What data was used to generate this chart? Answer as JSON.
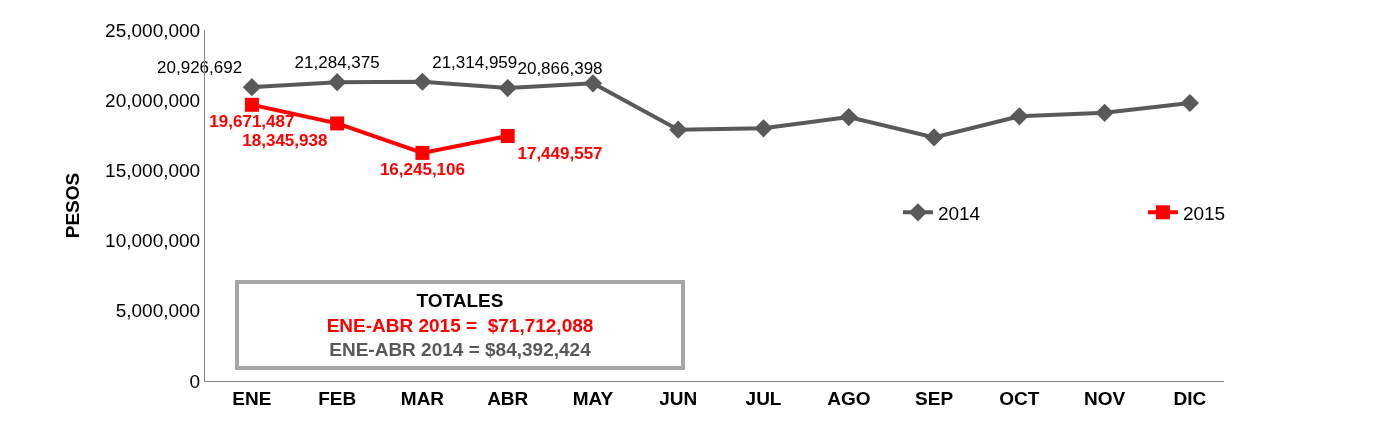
{
  "chart_data": {
    "type": "line",
    "ylabel": "PESOS",
    "categories": [
      "ENE",
      "FEB",
      "MAR",
      "ABR",
      "MAY",
      "JUN",
      "JUL",
      "AGO",
      "SEP",
      "OCT",
      "NOV",
      "DIC"
    ],
    "series": [
      {
        "name": "2014",
        "color": "#595959",
        "marker": "diamond",
        "values": [
          20926692,
          21284375,
          21314959,
          20866398,
          21200000,
          17900000,
          18000000,
          18800000,
          17350000,
          18850000,
          19100000,
          19800000
        ],
        "value_labels": [
          "20,926,692",
          "21,284,375",
          "21,314,959",
          "20,866,398",
          null,
          null,
          null,
          null,
          null,
          null,
          null,
          null
        ]
      },
      {
        "name": "2015",
        "color": "#ff0000",
        "marker": "square",
        "values": [
          19671487,
          18345938,
          16245106,
          17449557,
          null,
          null,
          null,
          null,
          null,
          null,
          null,
          null
        ],
        "value_labels": [
          "19,671,487",
          "18,345,938",
          "16,245,106",
          "17,449,557",
          null,
          null,
          null,
          null,
          null,
          null,
          null,
          null
        ]
      }
    ],
    "ylim": [
      0,
      25000000
    ],
    "yticks": [
      {
        "value": 0,
        "label": "0"
      },
      {
        "value": 5000000,
        "label": "5,000,000"
      },
      {
        "value": 10000000,
        "label": "10,000,000"
      },
      {
        "value": 15000000,
        "label": "15,000,000"
      },
      {
        "value": 20000000,
        "label": "20,000,000"
      },
      {
        "value": 25000000,
        "label": "25,000,000"
      }
    ],
    "grid": false,
    "legend": "right",
    "line_style": "solid",
    "annotations": [
      "TOTALES",
      "ENE-ABR 2015 =  $71,712,088",
      "ENE-ABR 2014 = $84,392,424"
    ]
  }
}
